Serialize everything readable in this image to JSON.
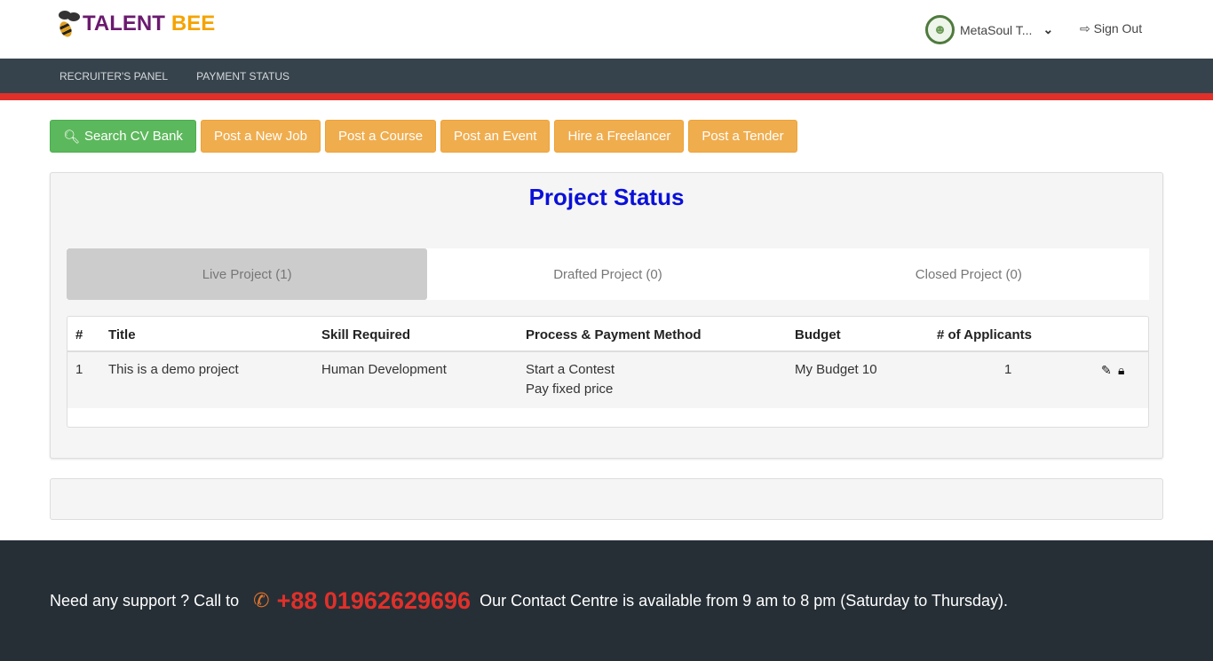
{
  "brand": {
    "word1": "TALENT",
    "word2": "BEE"
  },
  "user": {
    "name": "MetaSoul T...",
    "signout": "Sign Out"
  },
  "nav": [
    "RECRUITER'S PANEL",
    "PAYMENT STATUS"
  ],
  "actions": [
    "Search CV Bank",
    "Post a New Job",
    "Post a Course",
    "Post an Event",
    "Hire a Freelancer",
    "Post a Tender"
  ],
  "panel": {
    "title": "Project Status",
    "tabs": [
      "Live Project (1)",
      "Drafted Project (0)",
      "Closed Project (0)"
    ],
    "columns": [
      "#",
      "Title",
      "Skill Required",
      "Process & Payment Method",
      "Budget",
      "# of Applicants"
    ],
    "rows": [
      {
        "num": "1",
        "title": "This is a demo project",
        "skill": "Human Development",
        "process": "Start a Contest",
        "payment": "Pay fixed price",
        "budget": "My Budget 10",
        "applicants": "1"
      }
    ]
  },
  "footer": {
    "prefix": "Need any support ? Call to",
    "phone": "+88 01962629696",
    "suffix": "Our Contact Centre is available from 9 am to 8 pm (Saturday to Thursday)."
  },
  "colors": {
    "accent": "#e0302a",
    "nav": "#37434c",
    "title": "#0a10d8"
  }
}
